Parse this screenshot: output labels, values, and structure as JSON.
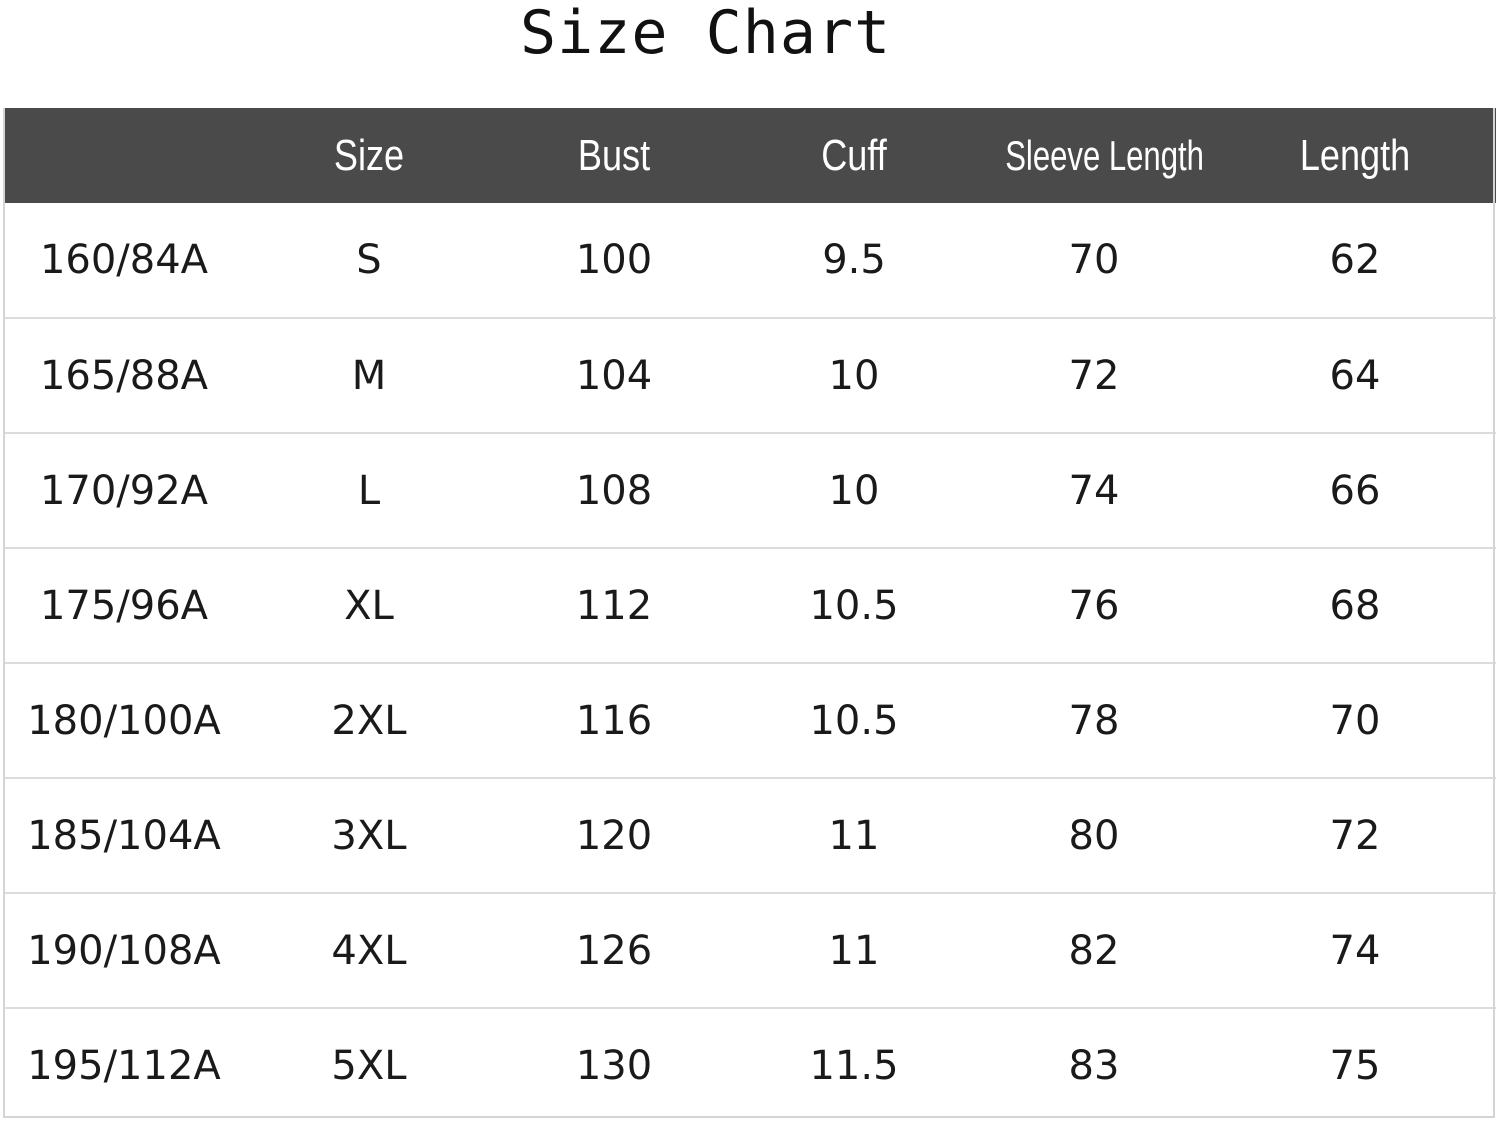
{
  "title": "Size Chart",
  "colors": {
    "header_background": "#4a4a4a",
    "header_text": "#ffffff",
    "row_divider": "#dcdcdc"
  },
  "chart_data": {
    "type": "table",
    "title": "Size Chart",
    "columns": [
      "",
      "Size",
      "Bust",
      "Cuff",
      "Sleeve Length",
      "Length"
    ],
    "rows": [
      [
        "160/84A",
        "S",
        "100",
        "9.5",
        "70",
        "62"
      ],
      [
        "165/88A",
        "M",
        "104",
        "10",
        "72",
        "64"
      ],
      [
        "170/92A",
        "L",
        "108",
        "10",
        "74",
        "66"
      ],
      [
        "175/96A",
        "XL",
        "112",
        "10.5",
        "76",
        "68"
      ],
      [
        "180/100A",
        "2XL",
        "116",
        "10.5",
        "78",
        "70"
      ],
      [
        "185/104A",
        "3XL",
        "120",
        "11",
        "80",
        "72"
      ],
      [
        "190/108A",
        "4XL",
        "126",
        "11",
        "82",
        "74"
      ],
      [
        "195/112A",
        "5XL",
        "130",
        "11.5",
        "83",
        "75"
      ]
    ]
  }
}
